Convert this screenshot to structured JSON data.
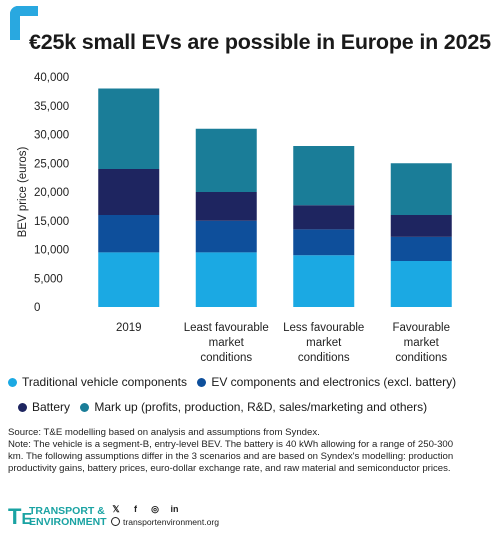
{
  "title": "€25k small EVs are possible in Europe in 2025",
  "colors": {
    "traditional": "#1ba9e3",
    "ev_components": "#0e4f9b",
    "battery": "#1e2560",
    "markup": "#1a7d98"
  },
  "legend": [
    {
      "label": "Traditional vehicle components",
      "color": "#1ba9e3"
    },
    {
      "label": "EV components and electronics (excl. battery)",
      "color": "#0e4f9b"
    },
    {
      "label": "Battery",
      "color": "#1e2560"
    },
    {
      "label": "Mark up (profits, production, R&D, sales/marketing and others)",
      "color": "#1a7d98"
    }
  ],
  "chart_data": {
    "type": "bar",
    "stacked": true,
    "ylabel": "BEV price (euros)",
    "xlabel": "",
    "ylim": [
      0,
      40000
    ],
    "yticks": [
      "0",
      "5,000",
      "10,000",
      "15,000",
      "20,000",
      "25,000",
      "30,000",
      "35,000",
      "40,000"
    ],
    "grid": false,
    "legend_position": "bottom",
    "categories": [
      [
        "2019"
      ],
      [
        "Least favourable",
        "market",
        "conditions"
      ],
      [
        "Less favourable",
        "market",
        "conditions"
      ],
      [
        "Favourable",
        "market",
        "conditions"
      ]
    ],
    "series": [
      {
        "name": "Traditional vehicle components",
        "color": "#1ba9e3",
        "values": [
          9500,
          9500,
          9000,
          8000
        ]
      },
      {
        "name": "EV components and electronics (excl. battery)",
        "color": "#0e4f9b",
        "values": [
          6500,
          5500,
          4500,
          4200
        ]
      },
      {
        "name": "Battery",
        "color": "#1e2560",
        "values": [
          8000,
          5000,
          4200,
          3800
        ]
      },
      {
        "name": "Mark up (profits, production, R&D, sales/marketing and others)",
        "color": "#1a7d98",
        "values": [
          14000,
          11000,
          10300,
          9000
        ]
      }
    ]
  },
  "notes": {
    "source": "Source: T&E modelling based on analysis and assumptions from Syndex.",
    "note": "Note: The vehicle is a segment-B, entry-level BEV. The battery is 40 kWh allowing for a range of 250-300 km. The following assumptions differ in the 3 scenarios and are based on Syndex's modelling: production productivity gains, battery prices, euro-dollar exchange rate, and raw material and semiconductor prices."
  },
  "footer": {
    "logo_line1": "TRANSPORT &",
    "logo_line2": "ENVIRONMENT",
    "social_icons": [
      "twitter-icon",
      "facebook-icon",
      "instagram-icon",
      "linkedin-icon"
    ],
    "social_glyphs": [
      "𝕏",
      "f",
      "◎",
      "in"
    ],
    "website": "transportenvironment.org"
  }
}
